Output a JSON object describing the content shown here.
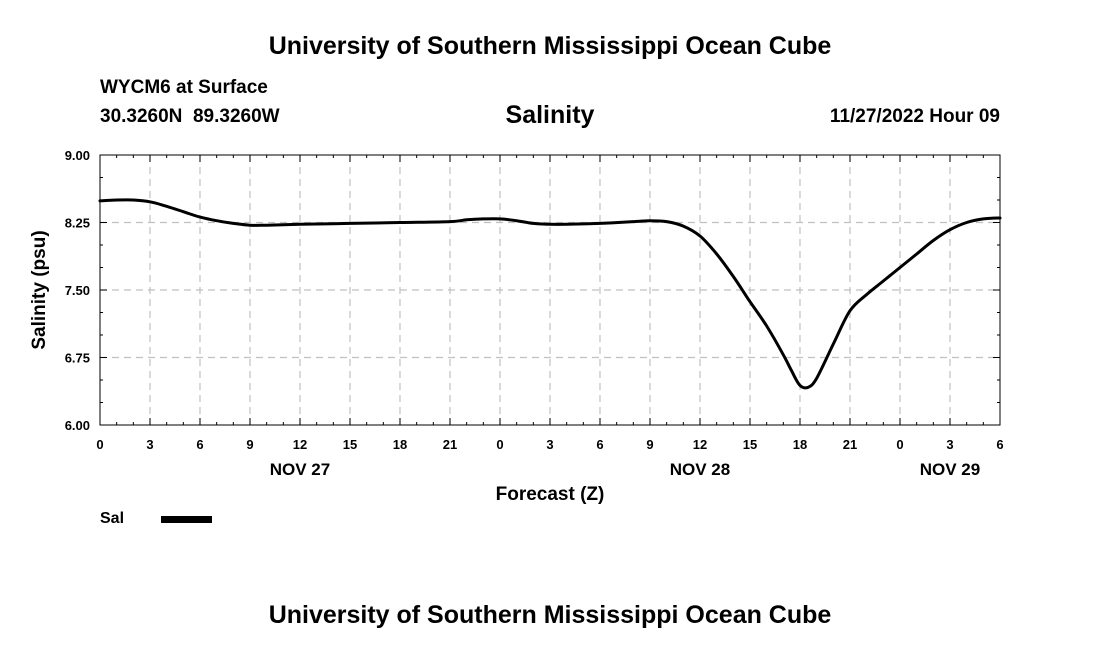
{
  "header": {
    "title": "University of Southern Mississippi Ocean Cube",
    "station": "WYCM6 at Surface",
    "coords": "30.3260N  89.3260W",
    "variable": "Salinity",
    "datetime": "11/27/2022 Hour 09"
  },
  "footer": {
    "title": "University of Southern Mississippi Ocean Cube"
  },
  "legend": {
    "label": "Sal"
  },
  "chart_data": {
    "type": "line",
    "title": "Salinity",
    "xlabel": "Forecast (Z)",
    "ylabel": "Salinity (psu)",
    "ylim": [
      6.0,
      9.0
    ],
    "xlim": [
      0,
      54
    ],
    "yticks": [
      "6.00",
      "6.75",
      "7.50",
      "8.25",
      "9.00"
    ],
    "ytick_values": [
      6.0,
      6.75,
      7.5,
      8.25,
      9.0
    ],
    "xticks": [
      "0",
      "3",
      "6",
      "9",
      "12",
      "15",
      "18",
      "21",
      "0",
      "3",
      "6",
      "9",
      "12",
      "15",
      "18",
      "21",
      "0",
      "3",
      "6"
    ],
    "day_labels": [
      {
        "label": "NOV 27",
        "x": 12
      },
      {
        "label": "NOV 28",
        "x": 36
      },
      {
        "label": "NOV 29",
        "x": 51
      }
    ],
    "grid": true,
    "series": [
      {
        "name": "Sal",
        "x": [
          0,
          1,
          2,
          3,
          4,
          5,
          6,
          7,
          8,
          9,
          10,
          12,
          15,
          18,
          21,
          22,
          23,
          24,
          25,
          26,
          27,
          28,
          30,
          32,
          33,
          34,
          35,
          36,
          37,
          38,
          39,
          40,
          41,
          41.5,
          42,
          42.5,
          43,
          44,
          45,
          46,
          47,
          48,
          49,
          50,
          51,
          52,
          53,
          54
        ],
        "values": [
          8.49,
          8.5,
          8.5,
          8.48,
          8.43,
          8.37,
          8.31,
          8.27,
          8.24,
          8.22,
          8.22,
          8.23,
          8.24,
          8.25,
          8.26,
          8.28,
          8.29,
          8.29,
          8.27,
          8.24,
          8.23,
          8.23,
          8.24,
          8.26,
          8.27,
          8.26,
          8.21,
          8.1,
          7.9,
          7.65,
          7.37,
          7.1,
          6.78,
          6.6,
          6.44,
          6.42,
          6.52,
          6.9,
          7.27,
          7.45,
          7.6,
          7.75,
          7.9,
          8.05,
          8.17,
          8.25,
          8.29,
          8.3
        ]
      }
    ]
  }
}
